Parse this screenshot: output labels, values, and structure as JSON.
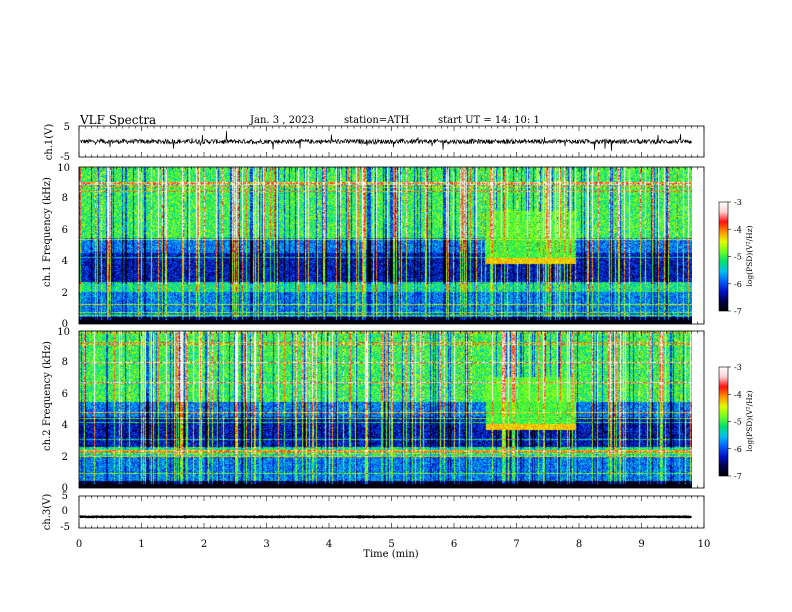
{
  "header": {
    "title": "VLF  Spectra",
    "date": "Jan. 3  , 2023",
    "station": "station=ATH",
    "start_ut": "start  UT  =   14: 10: 1"
  },
  "chart_data": [
    {
      "type": "line",
      "panel": "ch1-waveform",
      "ylabel": "ch.1(V)",
      "ylim": [
        -5,
        5
      ],
      "y_ticks": [
        "5",
        "-5"
      ],
      "xlim": [
        0,
        10
      ],
      "trace_extent_min": 9.8,
      "baseline_v": 0,
      "noise_amplitude_v": 1.5,
      "color": "#000000"
    },
    {
      "type": "heatmap",
      "panel": "ch1-spectrogram",
      "ylabel": "ch.1 Frequency  (kHz)",
      "ylim": [
        0,
        10
      ],
      "y_ticks": [
        "0",
        "2",
        "4",
        "6",
        "8",
        "10"
      ],
      "xlim": [
        0,
        10
      ],
      "data_extent_min": 9.8,
      "enhanced_emission": {
        "t_start": 6.5,
        "t_end": 7.95,
        "f_low": 3.8,
        "f_high": 4.2
      },
      "colorbar": {
        "label": "log(PSD)(V²/Hz)",
        "min": -7,
        "max": -3,
        "ticks": [
          "-3",
          "-4",
          "-5",
          "-6",
          "-7"
        ]
      }
    },
    {
      "type": "heatmap",
      "panel": "ch2-spectrogram",
      "ylabel": "ch.2 Frequency  (kHz)",
      "ylim": [
        0,
        10
      ],
      "y_ticks": [
        "0",
        "2",
        "4",
        "6",
        "8",
        "10"
      ],
      "xlim": [
        0,
        10
      ],
      "data_extent_min": 9.8,
      "enhanced_emission": {
        "t_start": 6.5,
        "t_end": 7.95,
        "f_low": 3.7,
        "f_high": 4.1
      },
      "colorbar": {
        "label": "log(PSD)(V²/Hz)",
        "min": -7,
        "max": -3,
        "ticks": [
          "-3",
          "-4",
          "-5",
          "-6",
          "-7"
        ]
      }
    },
    {
      "type": "line",
      "panel": "ch3-waveform",
      "ylabel": "ch.3(V)",
      "ylim": [
        -5,
        5
      ],
      "y_ticks": [
        "5",
        "0",
        "-5"
      ],
      "xlim": [
        0,
        10
      ],
      "trace_extent_min": 9.8,
      "baseline_v": -1.5,
      "noise_amplitude_v": 0.2,
      "color": "#000000"
    }
  ],
  "x_axis": {
    "label": "Time  (min)",
    "ticks": [
      "0",
      "1",
      "2",
      "3",
      "4",
      "5",
      "6",
      "7",
      "8",
      "9",
      "10"
    ]
  },
  "colormap": [
    "#000000",
    "#00004a",
    "#0010c8",
    "#0060ff",
    "#00c0f0",
    "#00e070",
    "#70ff20",
    "#e0ff00",
    "#ff9000",
    "#ff1010",
    "#ffd0d0",
    "#ffffff"
  ]
}
